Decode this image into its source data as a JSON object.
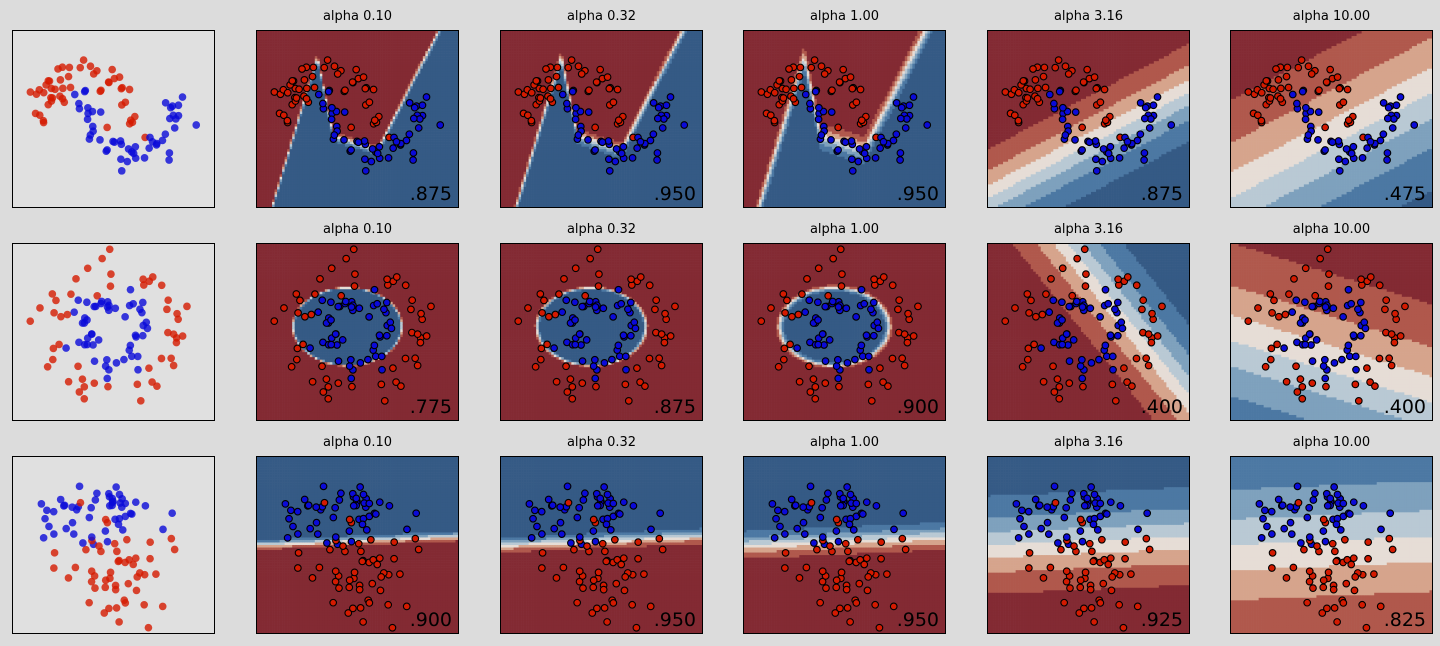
{
  "chart_data": {
    "type": "heatmap",
    "description_grid": "3 datasets x (input data + 5 classifiers)",
    "colors": {
      "class_red": "#d41a00",
      "class_blue": "#0a0ad8",
      "region_red": "#832a33",
      "region_blue": "#355a85",
      "figure_bg": "#dcdcdc"
    },
    "rows": [
      {
        "dataset": "moons",
        "panels": [
          {
            "title": "alpha 0.10",
            "score": ".875"
          },
          {
            "title": "alpha 0.32",
            "score": ".950"
          },
          {
            "title": "alpha 1.00",
            "score": ".950"
          },
          {
            "title": "alpha 3.16",
            "score": ".875"
          },
          {
            "title": "alpha 10.00",
            "score": ".475"
          }
        ]
      },
      {
        "dataset": "circles",
        "panels": [
          {
            "title": "alpha 0.10",
            "score": ".775"
          },
          {
            "title": "alpha 0.32",
            "score": ".875"
          },
          {
            "title": "alpha 1.00",
            "score": ".900"
          },
          {
            "title": "alpha 3.16",
            "score": ".400"
          },
          {
            "title": "alpha 10.00",
            "score": ".400"
          }
        ]
      },
      {
        "dataset": "linear",
        "panels": [
          {
            "title": "alpha 0.10",
            "score": ".900"
          },
          {
            "title": "alpha 0.32",
            "score": ".950"
          },
          {
            "title": "alpha 1.00",
            "score": ".950"
          },
          {
            "title": "alpha 3.16",
            "score": ".925"
          },
          {
            "title": "alpha 10.00",
            "score": ".825"
          }
        ]
      }
    ]
  }
}
